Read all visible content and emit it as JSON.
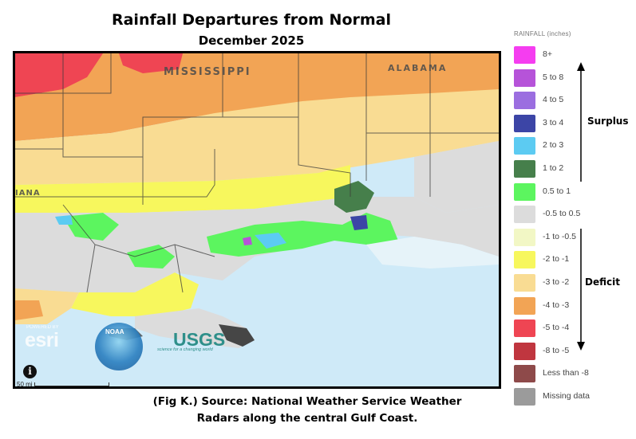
{
  "header": {
    "title": "Rainfall Departures from Normal",
    "subtitle": "December 2025"
  },
  "map": {
    "state_labels": [
      "MISSISSIPPI",
      "ALABAMA",
      "IANA"
    ],
    "attribution": {
      "esri_label": "esri",
      "esri_powered": "POWERED BY",
      "noaa_label": "NOAA",
      "usgs_label": "USGS",
      "usgs_tagline": "science for a changing world"
    },
    "scale_label": "50 mi",
    "info_icon": "info-icon",
    "colors": {
      "gulf_water": "#cfeaf8",
      "land_gray": "#dcdcdc",
      "boundary_lines": "#3a3a3a"
    }
  },
  "legend": {
    "title": "RAINFALL (inches)",
    "items": [
      {
        "label": "8+",
        "color": "#f53df0"
      },
      {
        "label": "5 to 8",
        "color": "#b653d9"
      },
      {
        "label": "4 to 5",
        "color": "#9b6ee0"
      },
      {
        "label": "3 to 4",
        "color": "#3c45a6"
      },
      {
        "label": "2 to 3",
        "color": "#5ccbf2"
      },
      {
        "label": "1 to 2",
        "color": "#467f4b"
      },
      {
        "label": "0.5 to 1",
        "color": "#5cf55f"
      },
      {
        "label": "-0.5 to 0.5",
        "color": "#dcdcdc"
      },
      {
        "label": "-1 to -0.5",
        "color": "#f2f7c5"
      },
      {
        "label": "-2 to -1",
        "color": "#f7f75d"
      },
      {
        "label": "-3 to -2",
        "color": "#f9dc93"
      },
      {
        "label": "-4 to -3",
        "color": "#f2a455"
      },
      {
        "label": "-5 to -4",
        "color": "#ef4553"
      },
      {
        "label": "-8 to -5",
        "color": "#c0363f"
      },
      {
        "label": "Less than -8",
        "color": "#8e4a4a"
      },
      {
        "label": "Missing data",
        "color": "#9b9b9b"
      }
    ],
    "surplus_label": "Surplus",
    "deficit_label": "Deficit"
  },
  "caption": {
    "line1": "(Fig K.) Source: National Weather Service Weather",
    "line2": "Radars along the central Gulf Coast."
  }
}
